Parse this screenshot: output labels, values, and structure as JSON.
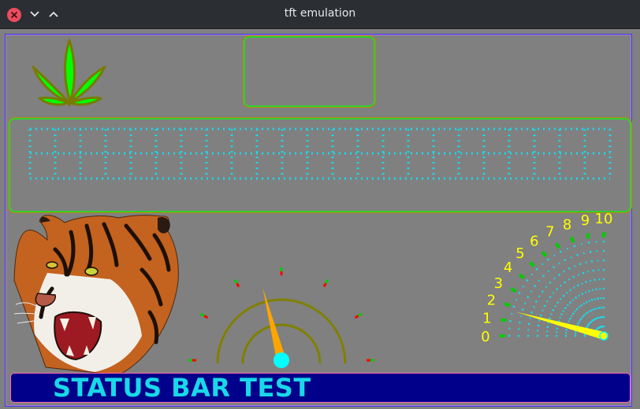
{
  "window": {
    "title": "tft emulation"
  },
  "status_bar": {
    "text": "STATUS BAR TEST"
  },
  "gauge": {
    "needle_fraction": 0.42
  },
  "radial_meter": {
    "labels": [
      "0",
      "1",
      "2",
      "3",
      "4",
      "5",
      "6",
      "7",
      "8",
      "9",
      "10"
    ],
    "needle_value": 1.7
  },
  "colors": {
    "screen_bg": "#808080",
    "status_bg": "#00008a",
    "status_text": "#19d8e8",
    "grid_dots": "#19d8e8",
    "gauge_arc": "#808000",
    "gauge_needle": "#ffa500",
    "meter_labels": "#ffff00",
    "leaf": "#00ff00"
  },
  "icons": [
    "close-icon",
    "minimize-chevron-icon",
    "maximize-chevron-icon",
    "cannabis-leaf-icon",
    "tiger-head-image"
  ]
}
